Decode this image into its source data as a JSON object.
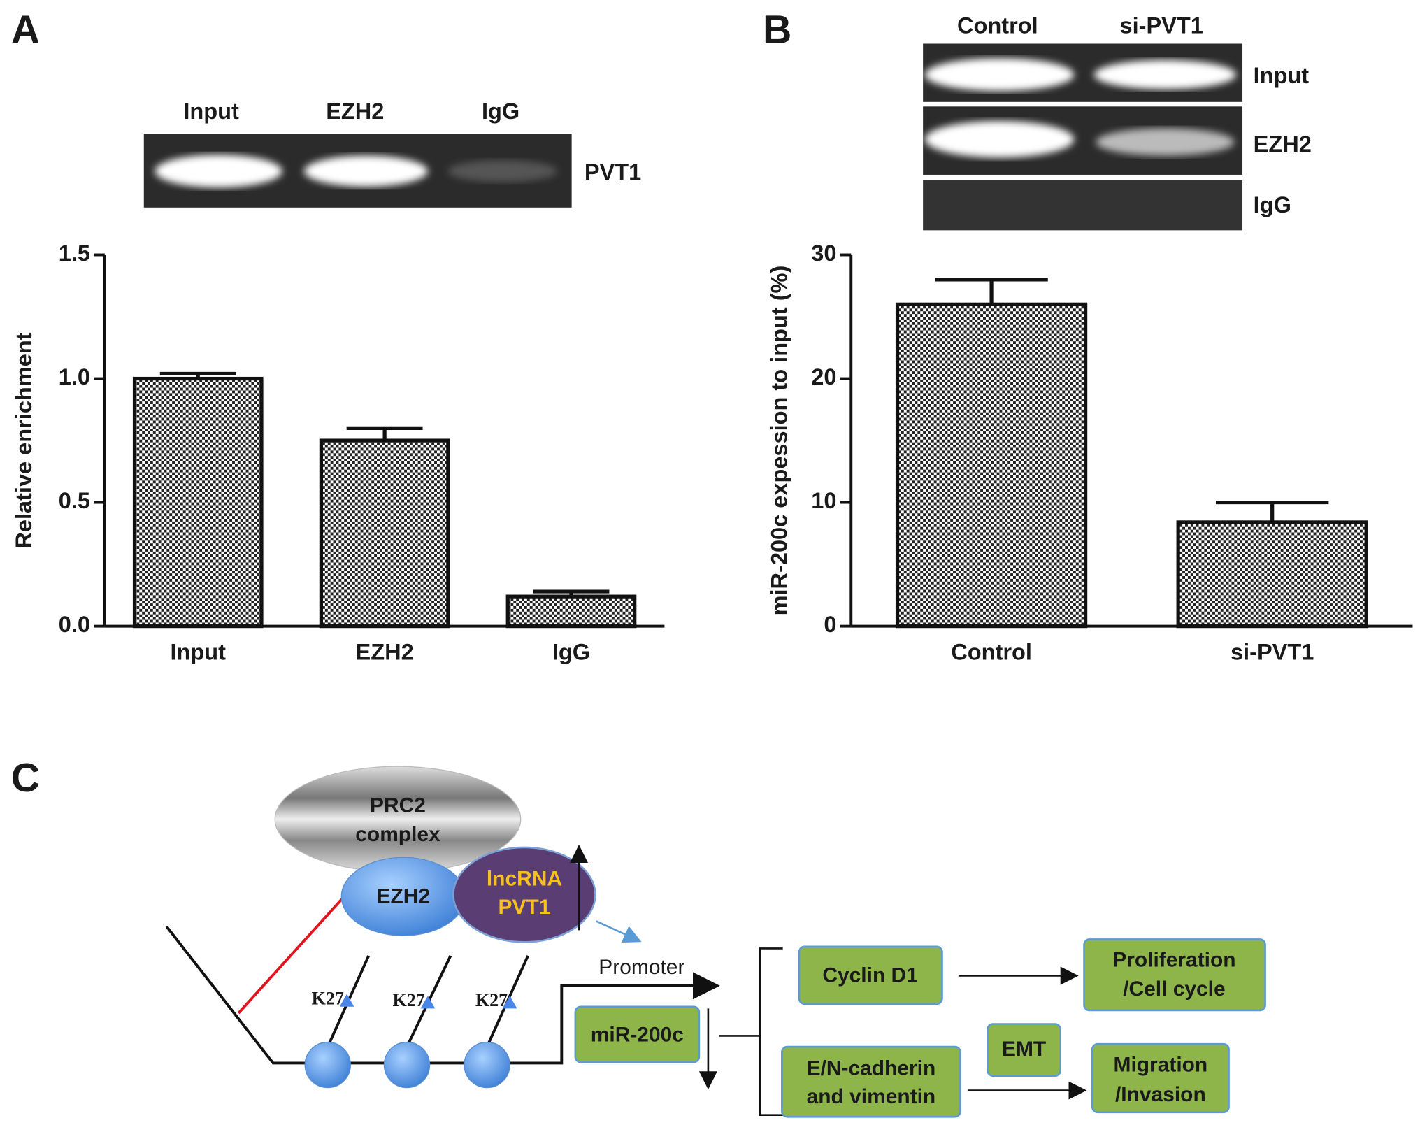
{
  "panels": [
    "A",
    "B",
    "C"
  ],
  "gels": [
    {
      "lanes": [
        "Input",
        "EZH2",
        "IgG"
      ],
      "rows": [
        "PVT1"
      ]
    },
    {
      "lanes": [
        "Control",
        "si-PVT1"
      ],
      "rows": [
        "Input",
        "EZH2",
        "IgG"
      ]
    }
  ],
  "chart_data": [
    {
      "type": "bar",
      "ylabel": "Relative enrichment",
      "categories": [
        "Input",
        "EZH2",
        "IgG"
      ],
      "values": [
        1.0,
        0.75,
        0.12
      ],
      "errors": [
        0.02,
        0.05,
        0.02
      ],
      "ylim": [
        0,
        1.5
      ],
      "yticks": [
        {
          "value": 0,
          "label": "0.0"
        },
        0.5,
        {
          "value": 1,
          "label": "1.0"
        },
        1.5
      ]
    },
    {
      "type": "bar",
      "ylabel": "miR-200c expession to input (%)",
      "categories": [
        "Control",
        "si-PVT1"
      ],
      "values": [
        26,
        8.4
      ],
      "errors": [
        2,
        1.6
      ],
      "ylim": [
        0,
        30
      ],
      "yticks": [
        0,
        10,
        20,
        30
      ]
    }
  ],
  "diagram": {
    "complex": [
      "PRC2",
      "complex"
    ],
    "ezh2": "EZH2",
    "lncrna": [
      "lncRNA",
      "PVT1"
    ],
    "k27": [
      "K27",
      "K27",
      "K27"
    ],
    "promoter": "Promoter",
    "mir": "miR-200c",
    "cyclin": "Cyclin D1",
    "cadherin": [
      "E/N-cadherin",
      "and vimentin"
    ],
    "emt": "EMT",
    "proliferation": [
      "Proliferation",
      "/Cell cycle"
    ],
    "migration": [
      "Migration",
      "/Invasion"
    ]
  }
}
